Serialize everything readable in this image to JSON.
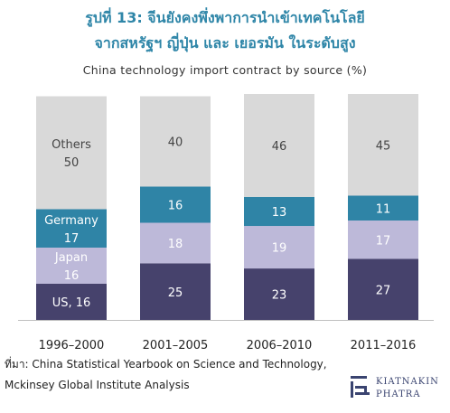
{
  "title_line1": "รูปที่ 13: จีนยังคงพึ่งพาการนำเข้าเทคโนโลยี",
  "title_line2": "จากสหรัฐฯ ญี่ปุ่น และ เยอรมัน ในระดับสูง",
  "source_line1": "ที่มา: China Statistical Yearbook on Science and Technology,",
  "source_line2": "Mckinsey Global Institute Analysis",
  "logo": {
    "line1": "KIATNAKIN",
    "line2": "PHATRA"
  },
  "colors": {
    "US": "#46426c",
    "Japan": "#bdb9d9",
    "Germany": "#2f84a6",
    "Others": "#d9d9d9"
  },
  "chart_data": {
    "type": "bar",
    "stacked": true,
    "title": "China technology import contract by source (%)",
    "categories": [
      "1996–2000",
      "2001–2005",
      "2006–2010",
      "2011–2016"
    ],
    "series": [
      {
        "name": "US",
        "values": [
          16,
          25,
          23,
          27
        ]
      },
      {
        "name": "Japan",
        "values": [
          16,
          18,
          19,
          17
        ]
      },
      {
        "name": "Germany",
        "values": [
          17,
          16,
          13,
          11
        ]
      },
      {
        "name": "Others",
        "values": [
          50,
          40,
          46,
          45
        ]
      }
    ],
    "first_bar_labels": {
      "US": "US, 16",
      "Japan": "Japan",
      "Germany": "Germany",
      "Others": "Others"
    },
    "ylim": [
      0,
      100
    ],
    "grid": false,
    "legend": "none"
  }
}
